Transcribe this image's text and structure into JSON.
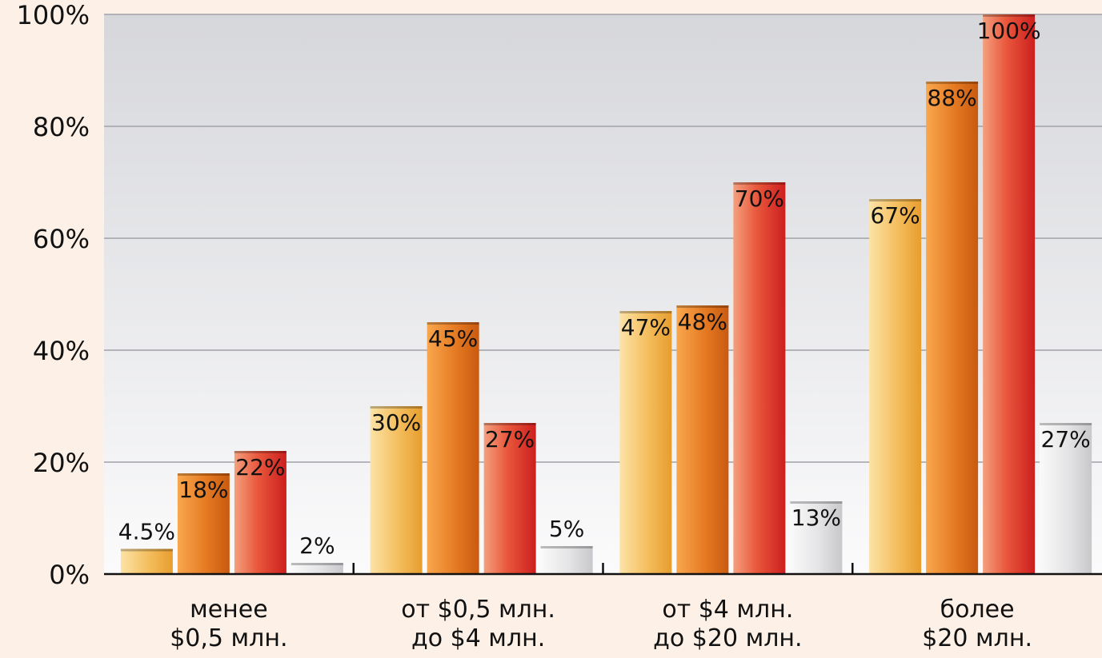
{
  "chart_data": {
    "type": "bar",
    "title": "",
    "xlabel": "",
    "ylabel": "",
    "ylim": [
      0,
      100
    ],
    "yticks": [
      0,
      20,
      40,
      60,
      80,
      100
    ],
    "ytick_labels": [
      "0%",
      "20%",
      "40%",
      "60%",
      "80%",
      "100%"
    ],
    "grid": true,
    "legend": "none",
    "categories": [
      [
        "менее",
        "$0,5 млн."
      ],
      [
        "от $0,5 млн.",
        "до $4 млн."
      ],
      [
        "от $4 млн.",
        "до $20 млн."
      ],
      [
        "более",
        "$20 млн."
      ]
    ],
    "series": [
      {
        "color": "#f2b24a",
        "values": [
          4.5,
          30,
          47,
          67
        ],
        "labels": [
          "4.5%",
          "30%",
          "47%",
          "67%"
        ]
      },
      {
        "color": "#e0761f",
        "values": [
          18,
          45,
          48,
          88
        ],
        "labels": [
          "18%",
          "45%",
          "48%",
          "88%"
        ]
      },
      {
        "color": "#d9362b",
        "values": [
          22,
          27,
          70,
          100
        ],
        "labels": [
          "22%",
          "27%",
          "70%",
          "100%"
        ]
      },
      {
        "color": "#d2d2d2",
        "values": [
          2,
          5,
          13,
          27
        ],
        "labels": [
          "2%",
          "5%",
          "13%",
          "27%"
        ]
      }
    ]
  }
}
